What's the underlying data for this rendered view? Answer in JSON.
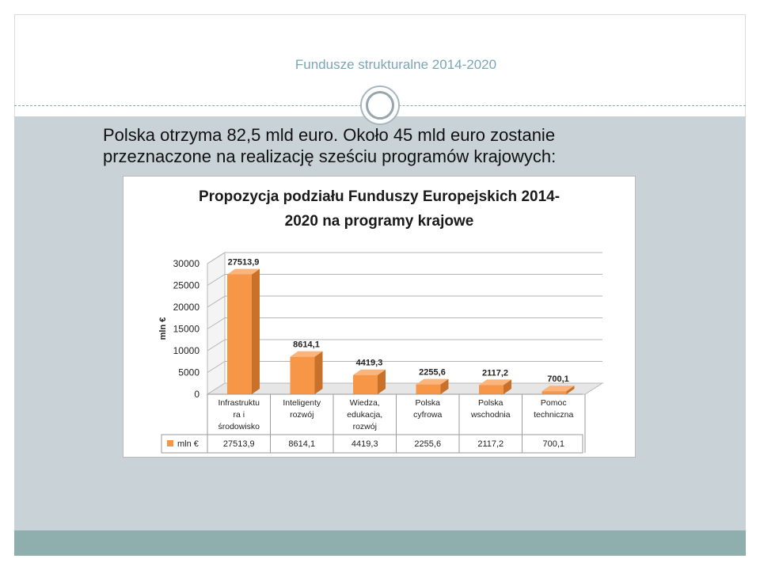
{
  "slide": {
    "header_title": "Fundusze strukturalne 2014-2020",
    "intro_line1": "Polska otrzyma 82,5 mld euro. Około 45 mld euro zostanie",
    "intro_line2": "przeznaczone na realizację sześciu programów krajowych:"
  },
  "colors": {
    "bar_front": "#f79646",
    "bar_top": "#fbb57c",
    "bar_side": "#c9712a",
    "content_background": "#c8d2d7",
    "footer_bar": "#8fafae"
  },
  "chart_data": {
    "type": "bar",
    "title": "Propozycja podziału Funduszy Europejskich 2014-2020 na programy krajowe",
    "title_lines": [
      "Propozycja podziału Funduszy Europejskich 2014-",
      "2020 na programy krajowe"
    ],
    "ylabel": "mln €",
    "xlabel": "",
    "ylim": [
      0,
      30000
    ],
    "yticks": [
      "0",
      "5000",
      "10000",
      "15000",
      "20000",
      "25000",
      "30000"
    ],
    "grid": true,
    "style": "3d-column",
    "legend_position": "data-table-left",
    "categories": [
      [
        "Infrastruktu",
        "ra i",
        "środowisko"
      ],
      [
        "Inteligenty",
        "rozwój"
      ],
      [
        "Wiedza,",
        "edukacja,",
        "rozwój"
      ],
      [
        "Polska",
        "cyfrowa"
      ],
      [
        "Polska",
        "wschodnia"
      ],
      [
        "Pomoc",
        "techniczna"
      ]
    ],
    "series": [
      {
        "name": "mln €",
        "values": [
          27513.9,
          8614.1,
          4419.3,
          2255.6,
          2117.2,
          700.1
        ],
        "labels": [
          "27513,9",
          "8614,1",
          "4419,3",
          "2255,6",
          "2117,2",
          "700,1"
        ]
      }
    ]
  }
}
